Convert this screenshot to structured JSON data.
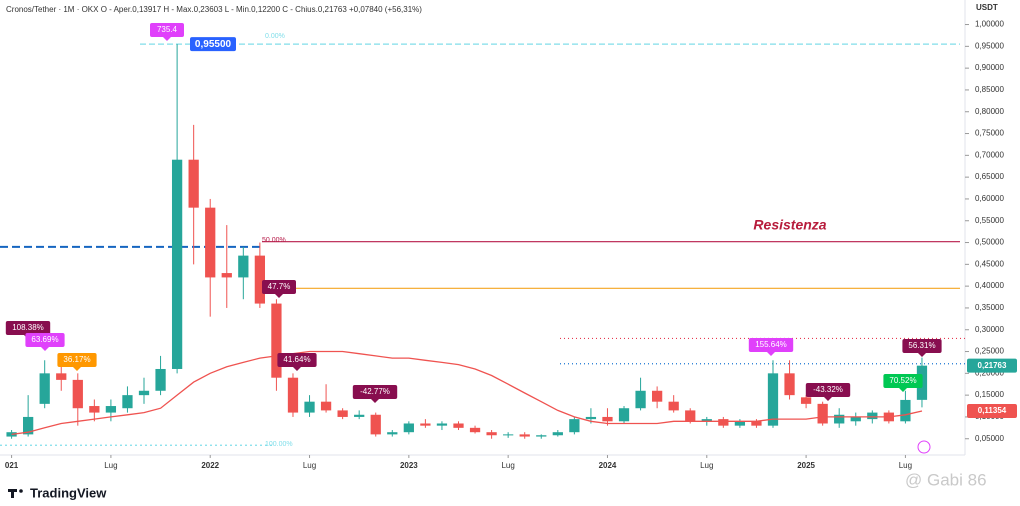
{
  "chart_data": {
    "type": "candlestick",
    "title": "Cronos/Tether · 1M · OKX  O - Aper.0,13917  H - Max.0,23603  L - Min.0,12200  C - Chius.0,21763  +0,07840 (+56,31%)",
    "y_axis_label": "USDT",
    "open": [
      0.055,
      0.06,
      0.13,
      0.2,
      0.185,
      0.125,
      0.11,
      0.12,
      0.15,
      0.16,
      0.21,
      0.69,
      0.58,
      0.43,
      0.42,
      0.47,
      0.36,
      0.19,
      0.11,
      0.135,
      0.115,
      0.1,
      0.105,
      0.06,
      0.065,
      0.085,
      0.08,
      0.085,
      0.075,
      0.065,
      0.058,
      0.06,
      0.055,
      0.058,
      0.065,
      0.095,
      0.1,
      0.09,
      0.12,
      0.16,
      0.135,
      0.115,
      0.09,
      0.095,
      0.08,
      0.09,
      0.08,
      0.2,
      0.145,
      0.13,
      0.085,
      0.09,
      0.095,
      0.11,
      0.09,
      0.13917
    ],
    "high": [
      0.07,
      0.15,
      0.23,
      0.22,
      0.2,
      0.14,
      0.14,
      0.17,
      0.19,
      0.24,
      0.955,
      0.77,
      0.6,
      0.54,
      0.49,
      0.5,
      0.37,
      0.2,
      0.15,
      0.175,
      0.12,
      0.115,
      0.11,
      0.07,
      0.09,
      0.095,
      0.09,
      0.09,
      0.08,
      0.07,
      0.065,
      0.065,
      0.06,
      0.07,
      0.1,
      0.12,
      0.12,
      0.125,
      0.19,
      0.17,
      0.15,
      0.12,
      0.1,
      0.1,
      0.095,
      0.095,
      0.23,
      0.23,
      0.15,
      0.135,
      0.12,
      0.11,
      0.115,
      0.115,
      0.16,
      0.23603
    ],
    "low": [
      0.05,
      0.055,
      0.12,
      0.16,
      0.08,
      0.09,
      0.09,
      0.11,
      0.13,
      0.15,
      0.2,
      0.45,
      0.33,
      0.35,
      0.37,
      0.35,
      0.16,
      0.1,
      0.1,
      0.11,
      0.095,
      0.095,
      0.055,
      0.055,
      0.06,
      0.075,
      0.07,
      0.07,
      0.062,
      0.05,
      0.052,
      0.05,
      0.05,
      0.055,
      0.06,
      0.085,
      0.08,
      0.085,
      0.115,
      0.12,
      0.11,
      0.085,
      0.08,
      0.075,
      0.075,
      0.075,
      0.075,
      0.14,
      0.12,
      0.08,
      0.075,
      0.08,
      0.085,
      0.085,
      0.085,
      0.122
    ],
    "close": [
      0.065,
      0.1,
      0.2,
      0.185,
      0.12,
      0.11,
      0.125,
      0.15,
      0.16,
      0.21,
      0.69,
      0.58,
      0.42,
      0.42,
      0.47,
      0.36,
      0.19,
      0.11,
      0.135,
      0.115,
      0.1,
      0.105,
      0.06,
      0.065,
      0.085,
      0.08,
      0.085,
      0.075,
      0.065,
      0.058,
      0.06,
      0.055,
      0.058,
      0.065,
      0.095,
      0.1,
      0.09,
      0.12,
      0.16,
      0.135,
      0.115,
      0.09,
      0.095,
      0.08,
      0.09,
      0.08,
      0.2,
      0.15,
      0.13,
      0.085,
      0.105,
      0.1,
      0.11,
      0.09,
      0.139,
      0.21763
    ],
    "up_color": "#26a69a",
    "down_color": "#ef5350",
    "ma": {
      "color": "#ef5350",
      "values": [
        0.06,
        0.065,
        0.075,
        0.085,
        0.09,
        0.095,
        0.1,
        0.105,
        0.11,
        0.12,
        0.15,
        0.18,
        0.2,
        0.215,
        0.225,
        0.235,
        0.24,
        0.245,
        0.25,
        0.25,
        0.25,
        0.245,
        0.24,
        0.235,
        0.235,
        0.23,
        0.225,
        0.22,
        0.21,
        0.195,
        0.175,
        0.155,
        0.135,
        0.115,
        0.1,
        0.09,
        0.085,
        0.085,
        0.085,
        0.085,
        0.09,
        0.09,
        0.09,
        0.09,
        0.09,
        0.09,
        0.095,
        0.095,
        0.095,
        0.1,
        0.1,
        0.1,
        0.1,
        0.1,
        0.105,
        0.11354
      ]
    },
    "xlim": [
      -0.7,
      57.6
    ],
    "ylim": [
      0.015,
      1.015
    ],
    "xticks": [
      {
        "value": 0,
        "label": "021"
      },
      {
        "value": 6,
        "label": "Lug"
      },
      {
        "value": 12,
        "label": "2022"
      },
      {
        "value": 18,
        "label": "Lug"
      },
      {
        "value": 24,
        "label": "2023"
      },
      {
        "value": 30,
        "label": "Lug"
      },
      {
        "value": 36,
        "label": "2024"
      },
      {
        "value": 42,
        "label": "Lug"
      },
      {
        "value": 48,
        "label": "2025"
      },
      {
        "value": 54,
        "label": "Lug"
      }
    ],
    "yticks": [
      {
        "value": 0.05,
        "label": "0,05000"
      },
      {
        "value": 0.1,
        "label": "0,10000"
      },
      {
        "value": 0.15,
        "label": "0,15000"
      },
      {
        "value": 0.2,
        "label": "0,20000"
      },
      {
        "value": 0.25,
        "label": "0,25000"
      },
      {
        "value": 0.3,
        "label": "0,30000"
      },
      {
        "value": 0.35,
        "label": "0,35000"
      },
      {
        "value": 0.4,
        "label": "0,40000"
      },
      {
        "value": 0.45,
        "label": "0,45000"
      },
      {
        "value": 0.5,
        "label": "0,50000"
      },
      {
        "value": 0.55,
        "label": "0,55000"
      },
      {
        "value": 0.6,
        "label": "0,60000"
      },
      {
        "value": 0.65,
        "label": "0,65000"
      },
      {
        "value": 0.7,
        "label": "0,70000"
      },
      {
        "value": 0.75,
        "label": "0,75000"
      },
      {
        "value": 0.8,
        "label": "0,80000"
      },
      {
        "value": 0.85,
        "label": "0,85000"
      },
      {
        "value": 0.9,
        "label": "0,90000"
      },
      {
        "value": 0.95,
        "label": "0,95000"
      },
      {
        "value": 1.0,
        "label": "1,00000"
      }
    ],
    "levels": [
      {
        "value": 0.955,
        "label": "0.00%",
        "color": "#80deea"
      },
      {
        "value": 0.035,
        "label": "100.00%",
        "color": "#80deea"
      },
      {
        "value": 0.502,
        "label": "50.00%",
        "color": "#b71c4a"
      },
      {
        "value": 0.395,
        "color": "#f5a623"
      },
      {
        "value": 0.49,
        "color": "#1565c0"
      },
      {
        "value": 0.28,
        "color": "#e53950"
      },
      {
        "value": 0.222,
        "color": "#1976d2"
      }
    ],
    "annotations": [
      {
        "label": "108.38%",
        "color": "#880e4f"
      },
      {
        "label": "63.69%",
        "color": "#e040fb"
      },
      {
        "label": "36.17%",
        "color": "#ff9800"
      },
      {
        "label": "735.4",
        "color": "#e040fb"
      },
      {
        "label": "47.7%",
        "color": "#880e4f"
      },
      {
        "label": "41.64%",
        "color": "#880e4f"
      },
      {
        "label": "-42.77%",
        "color": "#880e4f"
      },
      {
        "label": "155.64%",
        "color": "#e040fb"
      },
      {
        "label": "-43.32%",
        "color": "#880e4f"
      },
      {
        "label": "70.52%",
        "color": "#00c853"
      },
      {
        "label": "56.31%",
        "color": "#880e4f"
      }
    ],
    "text_annotation": "Resistenza",
    "price_tags": [
      {
        "value": 0.955,
        "label": "0,95500",
        "color": "#2962ff"
      },
      {
        "value": 0.21763,
        "label": "0,21763",
        "color": "#26a69a"
      },
      {
        "value": 0.11354,
        "label": "0,11354",
        "color": "#ef5350"
      }
    ],
    "brand": "TradingView",
    "watermark": "@ Gabi 86"
  }
}
